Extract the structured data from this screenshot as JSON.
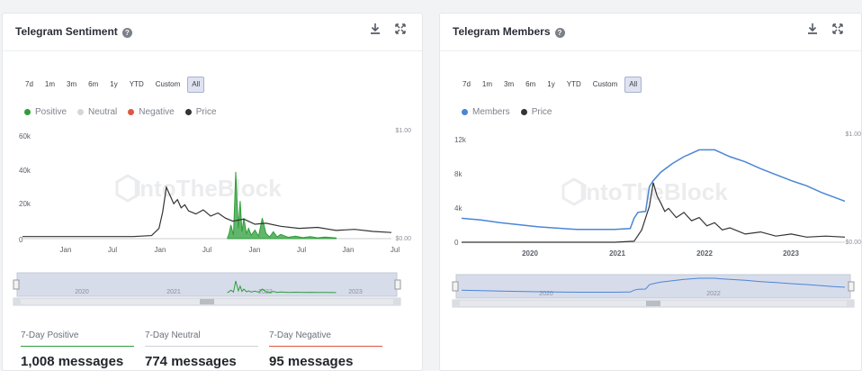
{
  "left_card": {
    "title": "Telegram Sentiment",
    "help_icon": "question-circle-icon",
    "download_icon": "download-icon",
    "expand_icon": "expand-icon",
    "ranges": [
      "7d",
      "1m",
      "3m",
      "6m",
      "1y",
      "YTD",
      "Custom",
      "All"
    ],
    "active_range": "All",
    "legend": [
      {
        "label": "Positive",
        "color": "#2e9e3a"
      },
      {
        "label": "Neutral",
        "color": "#d4d6da"
      },
      {
        "label": "Negative",
        "color": "#e0573f"
      },
      {
        "label": "Price",
        "color": "#333333"
      }
    ],
    "watermark": "IntoTheBlock",
    "stats": [
      {
        "label": "7-Day Positive",
        "value": "1,008 messages",
        "color": "#2e9e3a"
      },
      {
        "label": "7-Day Neutral",
        "value": "774 messages",
        "color": "#cfd2d6"
      },
      {
        "label": "7-Day Negative",
        "value": "95 messages",
        "color": "#e0573f"
      }
    ]
  },
  "right_card": {
    "title": "Telegram Members",
    "help_icon": "question-circle-icon",
    "download_icon": "download-icon",
    "expand_icon": "expand-icon",
    "ranges": [
      "7d",
      "1m",
      "3m",
      "6m",
      "1y",
      "YTD",
      "Custom",
      "All"
    ],
    "active_range": "All",
    "legend": [
      {
        "label": "Members",
        "color": "#4a86d6"
      },
      {
        "label": "Price",
        "color": "#333333"
      }
    ],
    "watermark": "IntoTheBlock"
  },
  "chart_data": [
    {
      "type": "area",
      "y_ticks": [
        "60k",
        "40k",
        "20k",
        "0"
      ],
      "y_right_ticks": [
        "$1.00",
        "$0.00"
      ],
      "x_ticks": [
        "Jan",
        "Jul",
        "Jan",
        "Jul",
        "Jan",
        "Jul",
        "Jan",
        "Jul"
      ],
      "navigator_ticks": [
        "2020",
        "2021",
        "2022",
        "2023"
      ],
      "ylim": [
        0,
        60000
      ],
      "series": [
        {
          "name": "Positive",
          "color": "#2e9e3a",
          "x": [
            0.555,
            0.56,
            0.565,
            0.572,
            0.578,
            0.585,
            0.59,
            0.595,
            0.6,
            0.607,
            0.613,
            0.62,
            0.63,
            0.64,
            0.65,
            0.66,
            0.67,
            0.68,
            0.69,
            0.7,
            0.72,
            0.74,
            0.76,
            0.78,
            0.8,
            0.82,
            0.85
          ],
          "values": [
            0,
            3000,
            8000,
            2000,
            39000,
            6000,
            22000,
            4000,
            12000,
            3000,
            6000,
            2000,
            5000,
            1500,
            12000,
            3000,
            1000,
            4000,
            1000,
            2500,
            800,
            1500,
            600,
            1200,
            500,
            900,
            400
          ]
        },
        {
          "name": "Price",
          "color": "#333333",
          "x": [
            0.0,
            0.1,
            0.2,
            0.3,
            0.35,
            0.37,
            0.38,
            0.39,
            0.4,
            0.41,
            0.42,
            0.43,
            0.44,
            0.45,
            0.47,
            0.49,
            0.51,
            0.53,
            0.55,
            0.57,
            0.6,
            0.63,
            0.66,
            0.7,
            0.75,
            0.8,
            0.85,
            0.9,
            0.95,
            1.0
          ],
          "values": [
            0.02,
            0.02,
            0.02,
            0.02,
            0.03,
            0.1,
            0.26,
            0.5,
            0.42,
            0.34,
            0.38,
            0.3,
            0.33,
            0.27,
            0.24,
            0.28,
            0.22,
            0.25,
            0.2,
            0.17,
            0.19,
            0.14,
            0.15,
            0.12,
            0.1,
            0.11,
            0.08,
            0.09,
            0.07,
            0.06
          ]
        }
      ]
    },
    {
      "type": "line",
      "y_ticks": [
        "12k",
        "8k",
        "4k",
        "0"
      ],
      "y_right_ticks": [
        "$1.00",
        "$0.00"
      ],
      "x_ticks": [
        "2020",
        "2021",
        "2022",
        "2023"
      ],
      "navigator_ticks": [
        "2020",
        "2022"
      ],
      "ylim": [
        0,
        12000
      ],
      "series": [
        {
          "name": "Members",
          "color": "#4a86d6",
          "x": [
            0.0,
            0.05,
            0.1,
            0.2,
            0.3,
            0.4,
            0.44,
            0.45,
            0.46,
            0.48,
            0.49,
            0.5,
            0.52,
            0.55,
            0.58,
            0.62,
            0.66,
            0.68,
            0.7,
            0.74,
            0.78,
            0.82,
            0.86,
            0.9,
            0.94,
            0.97,
            1.0
          ],
          "values": [
            2800,
            2600,
            2300,
            1800,
            1500,
            1500,
            1600,
            2800,
            3500,
            3600,
            6500,
            7200,
            8200,
            9200,
            10000,
            10800,
            10800,
            10400,
            10000,
            9400,
            8600,
            7900,
            7200,
            6600,
            5800,
            5300,
            4800
          ]
        },
        {
          "name": "Price",
          "color": "#333333",
          "x": [
            0.0,
            0.2,
            0.4,
            0.45,
            0.47,
            0.49,
            0.5,
            0.51,
            0.52,
            0.53,
            0.54,
            0.56,
            0.58,
            0.6,
            0.62,
            0.64,
            0.66,
            0.68,
            0.7,
            0.74,
            0.78,
            0.82,
            0.86,
            0.9,
            0.95,
            1.0
          ],
          "values": [
            0.0,
            0.0,
            0.0,
            0.01,
            0.12,
            0.35,
            0.58,
            0.45,
            0.38,
            0.3,
            0.33,
            0.24,
            0.29,
            0.21,
            0.24,
            0.16,
            0.19,
            0.12,
            0.14,
            0.08,
            0.1,
            0.06,
            0.08,
            0.05,
            0.06,
            0.05
          ]
        }
      ]
    }
  ]
}
